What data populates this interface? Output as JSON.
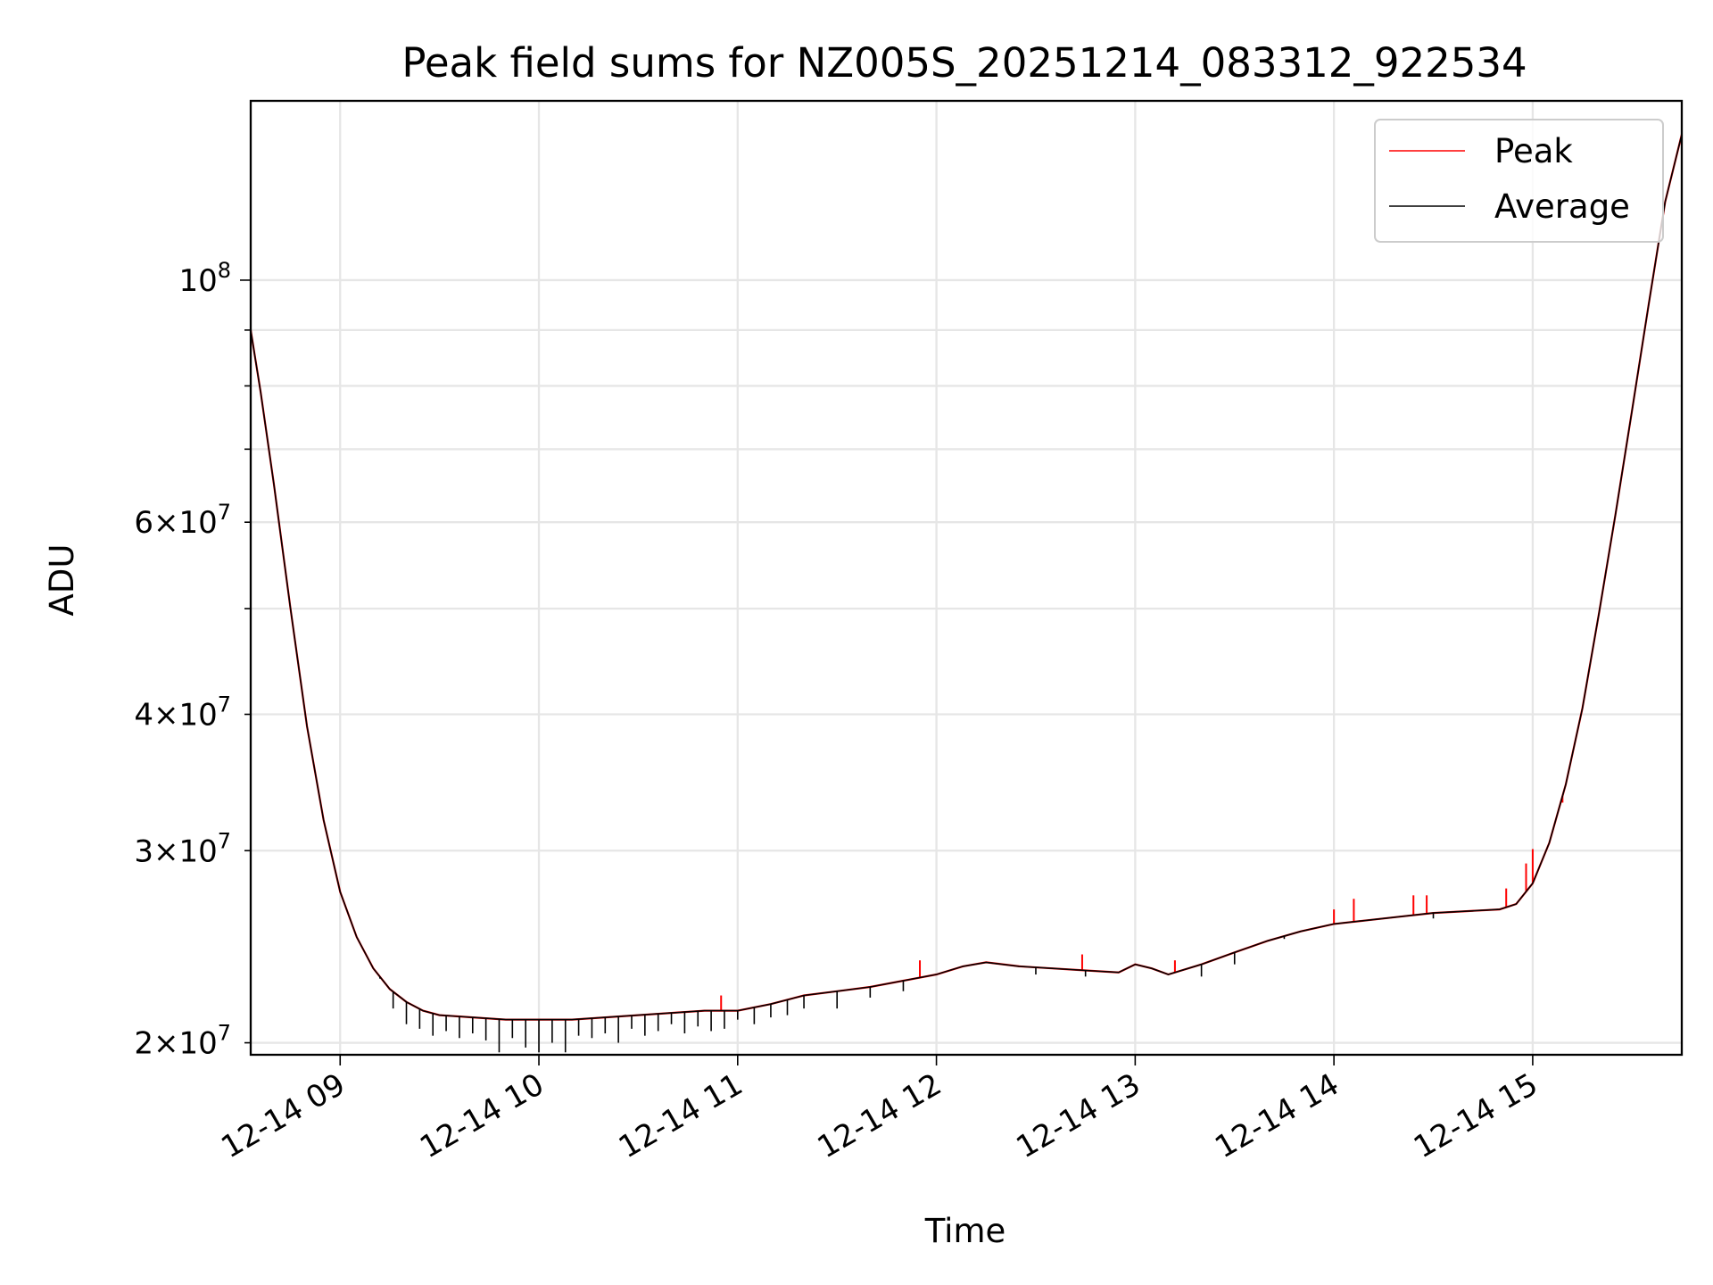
{
  "chart_data": {
    "type": "line",
    "title": "Peak field sums for NZ005S_20251214_083312_922534",
    "xlabel": "Time",
    "ylabel": "ADU",
    "x_scale": "time",
    "y_scale": "log",
    "xlim": [
      "2025-12-14 08:33",
      "2025-12-14 15:45"
    ],
    "ylim": [
      19500000,
      146000000
    ],
    "grid": true,
    "legend_position": "top-right",
    "x_ticks": [
      {
        "value": "2025-12-14 09:00",
        "label": "12-14 09"
      },
      {
        "value": "2025-12-14 10:00",
        "label": "12-14 10"
      },
      {
        "value": "2025-12-14 11:00",
        "label": "12-14 11"
      },
      {
        "value": "2025-12-14 12:00",
        "label": "12-14 12"
      },
      {
        "value": "2025-12-14 13:00",
        "label": "12-14 13"
      },
      {
        "value": "2025-12-14 14:00",
        "label": "12-14 14"
      },
      {
        "value": "2025-12-14 15:00",
        "label": "12-14 15"
      }
    ],
    "y_major_ticks": [
      {
        "value": 100000000,
        "base": "10",
        "exp": "8"
      }
    ],
    "y_minor_ticks": [
      {
        "value": 20000000,
        "mantissa": "2",
        "base": "10",
        "exp": "7"
      },
      {
        "value": 30000000,
        "mantissa": "3",
        "base": "10",
        "exp": "7"
      },
      {
        "value": 40000000,
        "mantissa": "4",
        "base": "10",
        "exp": "7"
      },
      {
        "value": 50000000
      },
      {
        "value": 60000000,
        "mantissa": "6",
        "base": "10",
        "exp": "7"
      },
      {
        "value": 70000000
      },
      {
        "value": 80000000
      },
      {
        "value": 90000000
      }
    ],
    "times_sep": [
      "2025-12-14 08:33",
      "2025-12-14 08:36",
      "2025-12-14 08:40",
      "2025-12-14 08:45",
      "2025-12-14 08:50",
      "2025-12-14 08:55",
      "2025-12-14 09:00",
      "2025-12-14 09:05",
      "2025-12-14 09:10",
      "2025-12-14 09:15",
      "2025-12-14 09:20",
      "2025-12-14 09:25",
      "2025-12-14 09:30",
      "2025-12-14 09:40",
      "2025-12-14 09:50",
      "2025-12-14 10:00",
      "2025-12-14 10:10",
      "2025-12-14 10:20",
      "2025-12-14 10:30",
      "2025-12-14 10:40",
      "2025-12-14 10:50",
      "2025-12-14 11:00",
      "2025-12-14 11:10",
      "2025-12-14 11:20",
      "2025-12-14 11:30",
      "2025-12-14 11:40",
      "2025-12-14 11:50",
      "2025-12-14 12:00",
      "2025-12-14 12:08",
      "2025-12-14 12:15",
      "2025-12-14 12:25",
      "2025-12-14 12:35",
      "2025-12-14 12:45",
      "2025-12-14 12:55",
      "2025-12-14 13:00",
      "2025-12-14 13:05",
      "2025-12-14 13:10",
      "2025-12-14 13:20",
      "2025-12-14 13:30",
      "2025-12-14 13:40",
      "2025-12-14 13:50",
      "2025-12-14 14:00",
      "2025-12-14 14:10",
      "2025-12-14 14:20",
      "2025-12-14 14:30",
      "2025-12-14 14:40",
      "2025-12-14 14:50",
      "2025-12-14 14:55",
      "2025-12-14 15:00",
      "2025-12-14 15:05",
      "2025-12-14 15:10",
      "2025-12-14 15:15",
      "2025-12-14 15:20",
      "2025-12-14 15:25",
      "2025-12-14 15:30",
      "2025-12-14 15:35",
      "2025-12-14 15:40",
      "2025-12-14 15:45"
    ],
    "average_values": [
      90000000,
      79000000,
      65000000,
      50000000,
      39000000,
      32000000,
      27500000,
      25000000,
      23400000,
      22400000,
      21800000,
      21400000,
      21200000,
      21100000,
      21000000,
      21000000,
      21000000,
      21100000,
      21200000,
      21300000,
      21400000,
      21400000,
      21700000,
      22100000,
      22300000,
      22500000,
      22800000,
      23100000,
      23500000,
      23700000,
      23500000,
      23400000,
      23300000,
      23200000,
      23600000,
      23400000,
      23100000,
      23600000,
      24200000,
      24800000,
      25300000,
      25700000,
      25900000,
      26100000,
      26300000,
      26400000,
      26500000,
      26800000,
      28000000,
      30500000,
      34500000,
      40500000,
      49500000,
      61000000,
      76000000,
      95000000,
      118000000,
      136000000
    ],
    "average_dips": [
      [
        "2025-12-14 09:12",
        22900000
      ],
      [
        "2025-12-14 09:16",
        21500000
      ],
      [
        "2025-12-14 09:20",
        20800000
      ],
      [
        "2025-12-14 09:24",
        20600000
      ],
      [
        "2025-12-14 09:28",
        20300000
      ],
      [
        "2025-12-14 09:32",
        20500000
      ],
      [
        "2025-12-14 09:36",
        20200000
      ],
      [
        "2025-12-14 09:40",
        20400000
      ],
      [
        "2025-12-14 09:44",
        20100000
      ],
      [
        "2025-12-14 09:48",
        19600000
      ],
      [
        "2025-12-14 09:52",
        20200000
      ],
      [
        "2025-12-14 09:56",
        19800000
      ],
      [
        "2025-12-14 10:00",
        19600000
      ],
      [
        "2025-12-14 10:04",
        20000000
      ],
      [
        "2025-12-14 10:08",
        19600000
      ],
      [
        "2025-12-14 10:12",
        20300000
      ],
      [
        "2025-12-14 10:16",
        20200000
      ],
      [
        "2025-12-14 10:20",
        20400000
      ],
      [
        "2025-12-14 10:24",
        20000000
      ],
      [
        "2025-12-14 10:28",
        20600000
      ],
      [
        "2025-12-14 10:32",
        20300000
      ],
      [
        "2025-12-14 10:36",
        20500000
      ],
      [
        "2025-12-14 10:40",
        20800000
      ],
      [
        "2025-12-14 10:44",
        20400000
      ],
      [
        "2025-12-14 10:48",
        20700000
      ],
      [
        "2025-12-14 10:52",
        20500000
      ],
      [
        "2025-12-14 10:56",
        20600000
      ],
      [
        "2025-12-14 11:00",
        21000000
      ],
      [
        "2025-12-14 11:05",
        20800000
      ],
      [
        "2025-12-14 11:10",
        21100000
      ],
      [
        "2025-12-14 11:15",
        21200000
      ],
      [
        "2025-12-14 11:20",
        21500000
      ],
      [
        "2025-12-14 11:30",
        21500000
      ],
      [
        "2025-12-14 11:40",
        22000000
      ],
      [
        "2025-12-14 11:50",
        22300000
      ],
      [
        "2025-12-14 12:30",
        23100000
      ],
      [
        "2025-12-14 12:45",
        23000000
      ],
      [
        "2025-12-14 13:20",
        23000000
      ],
      [
        "2025-12-14 13:30",
        23600000
      ],
      [
        "2025-12-14 13:45",
        24900000
      ],
      [
        "2025-12-14 14:30",
        26000000
      ]
    ],
    "peak_spikes": [
      [
        "2025-12-14 10:55",
        22100000
      ],
      [
        "2025-12-14 11:55",
        23800000
      ],
      [
        "2025-12-14 12:44",
        24100000
      ],
      [
        "2025-12-14 13:12",
        23800000
      ],
      [
        "2025-12-14 14:00",
        26500000
      ],
      [
        "2025-12-14 14:06",
        27100000
      ],
      [
        "2025-12-14 14:24",
        27300000
      ],
      [
        "2025-12-14 14:28",
        27300000
      ],
      [
        "2025-12-14 14:52",
        27700000
      ],
      [
        "2025-12-14 14:58",
        29200000
      ],
      [
        "2025-12-14 15:00",
        30100000
      ],
      [
        "2025-12-14 15:09",
        33200000
      ]
    ],
    "series": [
      {
        "name": "Peak",
        "color": "#ff0000"
      },
      {
        "name": "Average",
        "color": "#000000"
      }
    ]
  }
}
